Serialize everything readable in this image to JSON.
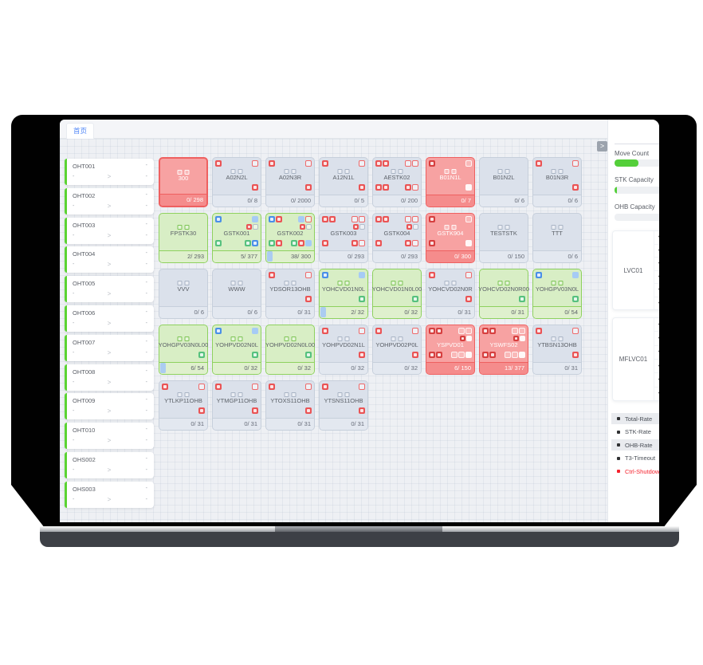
{
  "tab": {
    "home_label": "首页"
  },
  "toolbar": {
    "collapse_glyph": ">"
  },
  "sidebar": {
    "placeholder": "-",
    "chevron": ">",
    "items": [
      {
        "name": "OHT001"
      },
      {
        "name": "OHT002"
      },
      {
        "name": "OHT003"
      },
      {
        "name": "OHT004"
      },
      {
        "name": "OHT005"
      },
      {
        "name": "OHT006"
      },
      {
        "name": "OHT007"
      },
      {
        "name": "OHT008"
      },
      {
        "name": "OHT009"
      },
      {
        "name": "OHT010"
      },
      {
        "name": "OHS002"
      },
      {
        "name": "OHS003"
      }
    ]
  },
  "grid": {
    "rows": [
      [
        {
          "name": "300",
          "state": "red",
          "sel": true,
          "count": "0/ 298",
          "b": {
            "c": 2
          }
        },
        {
          "name": "A02N2L",
          "state": "default",
          "count": "0/ 8",
          "b": {
            "tl": [
              "r"
            ],
            "tr": [
              "ro"
            ],
            "c": 2,
            "mr": [
              "r"
            ]
          }
        },
        {
          "name": "A02N3R",
          "state": "default",
          "count": "0/ 2000",
          "b": {
            "tl": [
              "r"
            ],
            "tr": [
              "ro"
            ],
            "c": 2,
            "mr": [
              "r"
            ]
          }
        },
        {
          "name": "A12N1L",
          "state": "default",
          "count": "0/ 5",
          "b": {
            "tl": [
              "r"
            ],
            "tr": [
              "ro"
            ],
            "c": 2,
            "mr": [
              "r"
            ]
          }
        },
        {
          "name": "AESTK02",
          "state": "default",
          "count": "0/ 200",
          "b": {
            "tl": [
              "r",
              "r"
            ],
            "tr": [
              "ro",
              "ro"
            ],
            "c": 2,
            "bl": [
              "r",
              "r"
            ],
            "br": [
              "r",
              "ro"
            ]
          }
        },
        {
          "name": "B01N1L",
          "state": "red",
          "count": "0/ 7",
          "b": {
            "tl": [
              "rd"
            ],
            "tr": [
              "wo"
            ],
            "c": 2,
            "br": [
              "w"
            ]
          }
        },
        {
          "name": "B01N2L",
          "state": "default",
          "count": "0/ 6",
          "b": {
            "c": 2
          }
        },
        {
          "name": "B01N3R",
          "state": "default",
          "count": "0/ 6",
          "b": {
            "tl": [
              "r"
            ],
            "tr": [
              "ro"
            ],
            "c": 2,
            "mr": [
              "r"
            ]
          }
        }
      ],
      [
        {
          "name": "FPSTK30",
          "state": "green",
          "count": "2/ 293",
          "b": {
            "c": 2
          }
        },
        {
          "name": "GSTK001",
          "state": "green",
          "count": "5/ 377",
          "b": {
            "tl": [
              "b"
            ],
            "tr": [
              "bl"
            ],
            "r2": [
              "r",
              "o"
            ],
            "ml": [
              "g"
            ],
            "br": [
              "g",
              "b"
            ]
          }
        },
        {
          "name": "GSTK002",
          "state": "green",
          "count": "38/ 300",
          "chip": true,
          "b": {
            "tl": [
              "b",
              "r"
            ],
            "tr": [
              "bl",
              "ro"
            ],
            "r2": [
              "r",
              "o"
            ],
            "bl": [
              "g",
              "r"
            ],
            "br": [
              "g",
              "r",
              "bl"
            ]
          }
        },
        {
          "name": "GSTK003",
          "state": "default",
          "count": "0/ 293",
          "b": {
            "tl": [
              "r",
              "r"
            ],
            "tr": [
              "ro",
              "ro"
            ],
            "r2": [
              "r",
              "o"
            ],
            "bl": [
              "r"
            ],
            "br": [
              "r",
              "ro"
            ]
          }
        },
        {
          "name": "GSTK004",
          "state": "default",
          "count": "0/ 293",
          "b": {
            "tl": [
              "r",
              "r"
            ],
            "tr": [
              "ro",
              "ro"
            ],
            "r2": [
              "r",
              "o"
            ],
            "bl": [
              "r"
            ],
            "br": [
              "r",
              "ro"
            ]
          }
        },
        {
          "name": "GSTK904",
          "state": "red",
          "count": "0/ 300",
          "b": {
            "tl": [
              "rd"
            ],
            "tr": [
              "wo"
            ],
            "c": 2,
            "bl": [
              "rd"
            ],
            "br": [
              "w"
            ]
          }
        },
        {
          "name": "TESTSTK",
          "state": "default",
          "count": "0/ 150",
          "b": {
            "c": 2
          }
        },
        {
          "name": "TTT",
          "state": "default",
          "count": "0/ 6",
          "b": {
            "c": 2
          }
        }
      ],
      [
        {
          "name": "VVV",
          "state": "default",
          "count": "0/ 6",
          "b": {
            "c": 2
          }
        },
        {
          "name": "WWW",
          "state": "default",
          "count": "0/ 6",
          "b": {
            "c": 2
          }
        },
        {
          "name": "YDSOR13OHB",
          "state": "default",
          "count": "0/ 31",
          "b": {
            "tl": [
              "r"
            ],
            "tr": [
              "ro"
            ],
            "c": 2,
            "mr": [
              "r"
            ]
          }
        },
        {
          "name": "YOHCVD01N0L",
          "state": "green",
          "count": "2/ 32",
          "chip": true,
          "b": {
            "tl": [
              "b"
            ],
            "tr": [
              "bl"
            ],
            "c": 2,
            "mr": [
              "g"
            ]
          }
        },
        {
          "name": "YOHCVD01N0L00",
          "state": "green",
          "count": "0/ 32",
          "b": {
            "c": 2,
            "mr": [
              "g"
            ]
          }
        },
        {
          "name": "YOHCVD02N0R",
          "state": "default",
          "count": "0/ 31",
          "b": {
            "tl": [
              "r"
            ],
            "tr": [
              "ro"
            ],
            "c": 2,
            "mr": [
              "r"
            ]
          }
        },
        {
          "name": "YOHCVD02N0R00",
          "state": "green",
          "count": "0/ 31",
          "b": {
            "c": 2,
            "mr": [
              "g"
            ]
          }
        },
        {
          "name": "YOHGPV03N0L",
          "state": "green",
          "count": "0/ 54",
          "b": {
            "tl": [
              "b"
            ],
            "tr": [
              "bl"
            ],
            "c": 2,
            "mr": [
              "g"
            ]
          }
        }
      ],
      [
        {
          "name": "YOHGPV03N0L00",
          "state": "green",
          "count": "6/ 54",
          "chip": true,
          "b": {
            "c": 2,
            "mr": [
              "g"
            ]
          }
        },
        {
          "name": "YOHPVD02N0L",
          "state": "green",
          "count": "0/ 32",
          "b": {
            "tl": [
              "b"
            ],
            "tr": [
              "bl"
            ],
            "c": 2,
            "mr": [
              "g"
            ]
          }
        },
        {
          "name": "YOHPVD02N0L00",
          "state": "green",
          "count": "0/ 32",
          "b": {
            "c": 2,
            "mr": [
              "g"
            ]
          }
        },
        {
          "name": "YOHPVD02N1L",
          "state": "default",
          "count": "0/ 32",
          "b": {
            "tl": [
              "r"
            ],
            "tr": [
              "ro"
            ],
            "c": 2,
            "mr": [
              "r"
            ]
          }
        },
        {
          "name": "YOHPVD02P0L",
          "state": "default",
          "count": "0/ 32",
          "b": {
            "tl": [
              "r"
            ],
            "tr": [
              "ro"
            ],
            "c": 2,
            "mr": [
              "r"
            ]
          }
        },
        {
          "name": "YSPVD01",
          "state": "red",
          "count": "6/ 150",
          "b": {
            "tl": [
              "rd",
              "rd"
            ],
            "tr": [
              "wo",
              "wo"
            ],
            "r2": [
              "rd",
              "w"
            ],
            "bl": [
              "rd",
              "rd"
            ],
            "br": [
              "wo",
              "wo",
              "w"
            ]
          }
        },
        {
          "name": "YSWFS02",
          "state": "red",
          "count": "13/ 377",
          "b": {
            "tl": [
              "rd",
              "rd"
            ],
            "tr": [
              "wo",
              "wo"
            ],
            "r2": [
              "rd",
              "w"
            ],
            "bl": [
              "rd",
              "rd"
            ],
            "br": [
              "wo",
              "wo",
              "w"
            ]
          }
        },
        {
          "name": "YTBSN13OHB",
          "state": "default",
          "count": "0/ 31",
          "b": {
            "tl": [
              "r"
            ],
            "tr": [
              "ro"
            ],
            "c": 2,
            "mr": [
              "r"
            ]
          }
        }
      ],
      [
        {
          "name": "YTLKP11OHB",
          "state": "default",
          "count": "0/ 31",
          "b": {
            "tl": [
              "r"
            ],
            "tr": [
              "ro"
            ],
            "c": 2,
            "mr": [
              "r"
            ]
          }
        },
        {
          "name": "YTMGP11OHB",
          "state": "default",
          "count": "0/ 31",
          "b": {
            "tl": [
              "r"
            ],
            "tr": [
              "ro"
            ],
            "c": 2,
            "mr": [
              "r"
            ]
          }
        },
        {
          "name": "YTOXS11OHB",
          "state": "default",
          "count": "0/ 31",
          "b": {
            "tl": [
              "r"
            ],
            "tr": [
              "ro"
            ],
            "c": 2,
            "mr": [
              "r"
            ]
          }
        },
        {
          "name": "YTSNS11OHB",
          "state": "default",
          "count": "0/ 31",
          "b": {
            "tl": [
              "r"
            ],
            "tr": [
              "ro"
            ],
            "c": 2,
            "mr": [
              "r"
            ]
          }
        }
      ]
    ]
  },
  "panel": {
    "move_count": {
      "label": "Move Count",
      "pct": 24
    },
    "stk_capacity": {
      "label": "STK Capacity",
      "pct": 2
    },
    "ohb_capacity": {
      "label": "OHB Capacity",
      "pct": 0
    },
    "row_bullet": "•",
    "stations": [
      {
        "name": "LVC01",
        "rows": 6
      },
      {
        "name": "MFLVC01",
        "rows": 6
      }
    ],
    "legend": [
      {
        "label": "Total-Rate",
        "highlight": true,
        "alert": false
      },
      {
        "label": "STK-Rate",
        "highlight": false,
        "alert": false
      },
      {
        "label": "OHB-Rate",
        "highlight": true,
        "alert": false
      },
      {
        "label": "T3-Timeout",
        "highlight": false,
        "alert": false
      },
      {
        "label": "Ctrl-Shutdown",
        "highlight": false,
        "alert": true
      }
    ]
  },
  "colors": {
    "accent_green": "#5ad332",
    "alarm_red": "#ee6060",
    "ok_green": "#8ed15e",
    "idle_gray": "#dbe1eb",
    "tab_blue": "#4f86f7",
    "legend_alert": "#f5222d"
  }
}
